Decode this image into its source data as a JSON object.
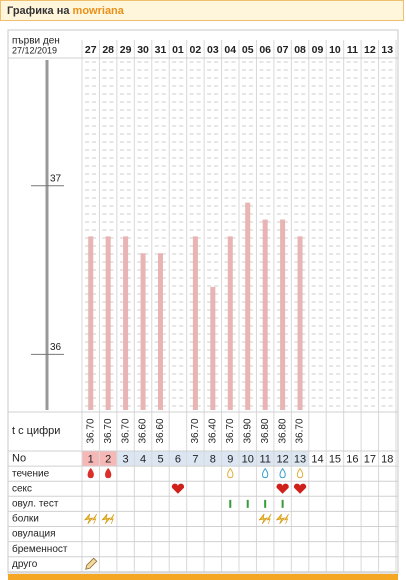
{
  "header": {
    "prefix": "Графика на",
    "user": "mowriana"
  },
  "chart_data": {
    "type": "bar",
    "first_day_label": "първи ден",
    "first_day": "27/12/2019",
    "categories": [
      "27",
      "28",
      "29",
      "30",
      "31",
      "01",
      "02",
      "03",
      "04",
      "05",
      "06",
      "07",
      "08",
      "09",
      "10",
      "11",
      "12",
      "13"
    ],
    "values": [
      36.7,
      36.7,
      36.7,
      36.6,
      36.6,
      null,
      36.7,
      36.4,
      36.7,
      36.9,
      36.8,
      36.8,
      36.7,
      null,
      null,
      null,
      null,
      null
    ],
    "value_labels": [
      "36.70",
      "36.70",
      "36.70",
      "36.60",
      "36.60",
      null,
      "36.70",
      "36.40",
      "36.70",
      "36.90",
      "36.80",
      "36.80",
      "36.70",
      null,
      null,
      null,
      null,
      null
    ],
    "color": "#e8b4b4",
    "ylim": [
      35.67,
      37.77
    ],
    "yticks": [
      36,
      37
    ],
    "values_row_label": "t с цифри"
  },
  "table": {
    "number_label": "No",
    "numbers": [
      1,
      2,
      3,
      4,
      5,
      6,
      7,
      8,
      9,
      10,
      11,
      12,
      13,
      14,
      15,
      16,
      17,
      18
    ],
    "row_labels": [
      "течение",
      "секс",
      "овул. тест",
      "болки",
      "овулация",
      "бременност",
      "друго"
    ]
  }
}
